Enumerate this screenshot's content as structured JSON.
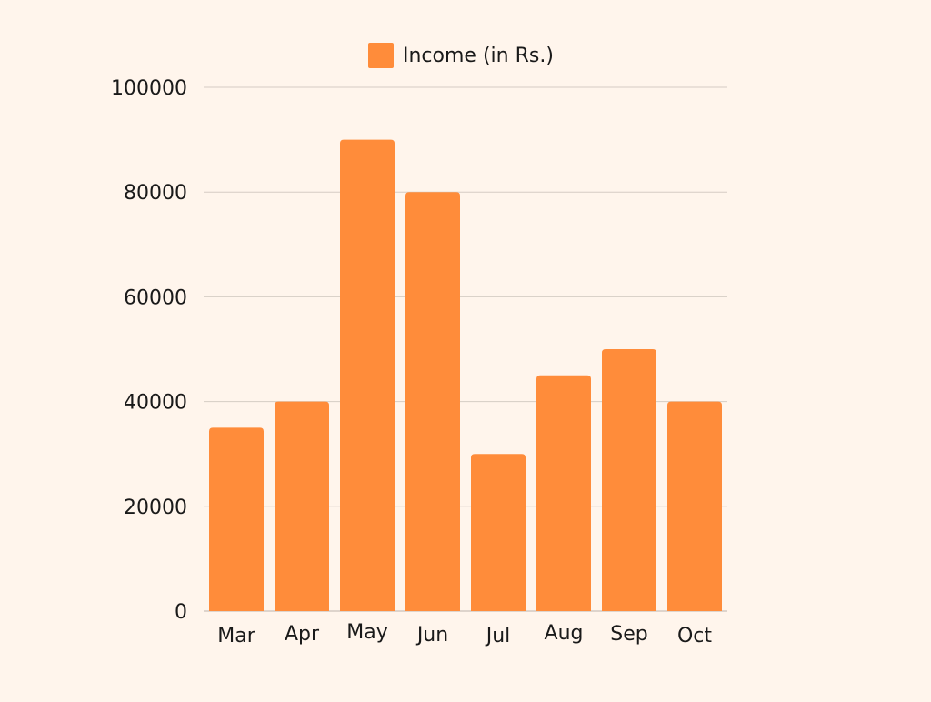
{
  "chart_data": {
    "type": "bar",
    "categories": [
      "Mar",
      "Apr",
      "May",
      "Jun",
      "Jul",
      "Aug",
      "Sep",
      "Oct"
    ],
    "series": [
      {
        "name": "Income (in Rs.)",
        "values": [
          35000,
          40000,
          90000,
          80000,
          30000,
          45000,
          50000,
          40000
        ]
      }
    ],
    "ylim": [
      0,
      100000
    ],
    "yticks": [
      "0",
      "20000",
      "40000",
      "60000",
      "80000",
      "100000"
    ],
    "ytick_values": [
      0,
      20000,
      40000,
      60000,
      80000,
      100000
    ],
    "grid": true,
    "legend_position": "top-center",
    "colors": {
      "bar": "#FF8C3A",
      "grid": "#D5CCC4",
      "axis": "#BDB4AD",
      "background": "#FFF5EC"
    }
  }
}
